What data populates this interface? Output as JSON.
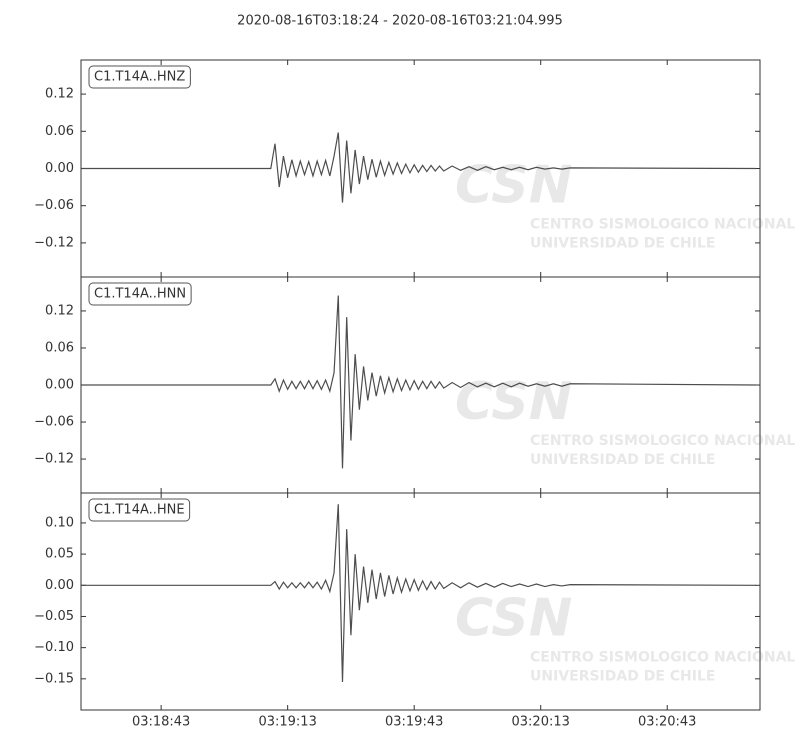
{
  "title": "2020-08-16T03:18:24  -  2020-08-16T03:21:04.995",
  "watermark": {
    "logo": "CSN",
    "line1": "CENTRO SISMOLOGICO NACIONAL",
    "line2": "UNIVERSIDAD DE CHILE"
  },
  "chart_data": [
    {
      "type": "line",
      "label": "C1.T14A..HNZ",
      "xlim": [
        "03:18:24",
        "03:21:04.995"
      ],
      "ylim": [
        -0.175,
        0.175
      ],
      "yticks": [
        {
          "value": -0.12,
          "label": "−0.12"
        },
        {
          "value": -0.06,
          "label": "−0.06"
        },
        {
          "value": 0,
          "label": "0.00"
        },
        {
          "value": 0.06,
          "label": "0.06"
        },
        {
          "value": 0.12,
          "label": "0.12"
        }
      ],
      "series": [
        {
          "name": "C1.T14A..HNZ",
          "color": "#4d4d4d",
          "x": [
            "03:18:24",
            "03:19:09",
            "03:19:10",
            "03:19:11",
            "03:19:12",
            "03:19:13",
            "03:19:14",
            "03:19:15",
            "03:19:16",
            "03:19:17",
            "03:19:18",
            "03:19:19",
            "03:19:20",
            "03:19:21",
            "03:19:22",
            "03:19:23",
            "03:19:24",
            "03:19:25",
            "03:19:26",
            "03:19:27",
            "03:19:28",
            "03:19:29",
            "03:19:30",
            "03:19:31",
            "03:19:32",
            "03:19:33",
            "03:19:34",
            "03:19:35",
            "03:19:36",
            "03:19:37",
            "03:19:38",
            "03:19:39",
            "03:19:40",
            "03:19:41",
            "03:19:42",
            "03:19:43",
            "03:19:44",
            "03:19:45",
            "03:19:46",
            "03:19:47",
            "03:19:48",
            "03:19:49",
            "03:19:50",
            "03:19:52",
            "03:19:54",
            "03:19:56",
            "03:19:58",
            "03:20:00",
            "03:20:02",
            "03:20:04",
            "03:20:06",
            "03:20:08",
            "03:20:10",
            "03:20:12",
            "03:20:14",
            "03:20:16",
            "03:20:18",
            "03:20:20",
            "03:21:04"
          ],
          "values": [
            0,
            0,
            0.04,
            -0.03,
            0.02,
            -0.015,
            0.014,
            -0.012,
            0.012,
            -0.01,
            0.011,
            -0.012,
            0.012,
            -0.01,
            0.013,
            -0.012,
            0.02,
            0.058,
            -0.055,
            0.045,
            -0.04,
            0.03,
            -0.025,
            0.02,
            -0.018,
            0.015,
            -0.014,
            0.012,
            -0.011,
            0.01,
            -0.009,
            0.009,
            -0.008,
            0.007,
            -0.007,
            0.006,
            -0.006,
            0.005,
            -0.005,
            0.005,
            -0.004,
            0.004,
            -0.004,
            0.004,
            -0.003,
            0.003,
            -0.003,
            0.003,
            -0.002,
            0.002,
            -0.002,
            0.002,
            -0.002,
            0.002,
            -0.001,
            0.001,
            -0.001,
            0.001,
            0
          ]
        }
      ]
    },
    {
      "type": "line",
      "label": "C1.T14A..HNN",
      "xlim": [
        "03:18:24",
        "03:21:04.995"
      ],
      "ylim": [
        -0.175,
        0.175
      ],
      "yticks": [
        {
          "value": -0.12,
          "label": "−0.12"
        },
        {
          "value": -0.06,
          "label": "−0.06"
        },
        {
          "value": 0,
          "label": "0.00"
        },
        {
          "value": 0.06,
          "label": "0.06"
        },
        {
          "value": 0.12,
          "label": "0.12"
        }
      ],
      "series": [
        {
          "name": "C1.T14A..HNN",
          "color": "#4d4d4d",
          "x": [
            "03:18:24",
            "03:19:09",
            "03:19:10",
            "03:19:11",
            "03:19:12",
            "03:19:13",
            "03:19:14",
            "03:19:15",
            "03:19:16",
            "03:19:17",
            "03:19:18",
            "03:19:19",
            "03:19:20",
            "03:19:21",
            "03:19:22",
            "03:19:23",
            "03:19:24",
            "03:19:25",
            "03:19:26",
            "03:19:27",
            "03:19:28",
            "03:19:29",
            "03:19:30",
            "03:19:31",
            "03:19:32",
            "03:19:33",
            "03:19:34",
            "03:19:35",
            "03:19:36",
            "03:19:37",
            "03:19:38",
            "03:19:39",
            "03:19:40",
            "03:19:41",
            "03:19:42",
            "03:19:43",
            "03:19:44",
            "03:19:45",
            "03:19:46",
            "03:19:47",
            "03:19:48",
            "03:19:49",
            "03:19:50",
            "03:19:52",
            "03:19:54",
            "03:19:56",
            "03:19:58",
            "03:20:00",
            "03:20:02",
            "03:20:04",
            "03:20:06",
            "03:20:08",
            "03:20:10",
            "03:20:12",
            "03:20:14",
            "03:20:16",
            "03:20:18",
            "03:20:20",
            "03:21:04"
          ],
          "values": [
            0,
            0,
            0.01,
            -0.01,
            0.008,
            -0.007,
            0.006,
            -0.006,
            0.006,
            -0.006,
            0.007,
            -0.006,
            0.007,
            -0.007,
            0.008,
            -0.01,
            0.02,
            0.145,
            -0.135,
            0.11,
            -0.09,
            0.05,
            -0.04,
            0.03,
            -0.025,
            0.02,
            -0.018,
            0.015,
            -0.013,
            0.012,
            -0.011,
            0.01,
            -0.009,
            0.008,
            -0.008,
            0.007,
            -0.007,
            0.006,
            -0.006,
            0.006,
            -0.005,
            0.005,
            -0.005,
            0.004,
            -0.004,
            0.004,
            -0.003,
            0.003,
            -0.003,
            0.003,
            -0.003,
            0.003,
            -0.002,
            0.002,
            -0.002,
            0.002,
            -0.002,
            0.002,
            0
          ]
        }
      ]
    },
    {
      "type": "line",
      "label": "C1.T14A..HNE",
      "xlim": [
        "03:18:24",
        "03:21:04.995"
      ],
      "ylim": [
        -0.2,
        0.148
      ],
      "yticks": [
        {
          "value": -0.15,
          "label": "−0.15"
        },
        {
          "value": -0.1,
          "label": "−0.10"
        },
        {
          "value": -0.05,
          "label": "−0.05"
        },
        {
          "value": 0,
          "label": "0.00"
        },
        {
          "value": 0.05,
          "label": "0.05"
        },
        {
          "value": 0.1,
          "label": "0.10"
        }
      ],
      "xticks": [
        "03:18:43",
        "03:19:13",
        "03:19:43",
        "03:20:13",
        "03:20:43"
      ],
      "series": [
        {
          "name": "C1.T14A..HNE",
          "color": "#4d4d4d",
          "x": [
            "03:18:24",
            "03:19:09",
            "03:19:10",
            "03:19:11",
            "03:19:12",
            "03:19:13",
            "03:19:14",
            "03:19:15",
            "03:19:16",
            "03:19:17",
            "03:19:18",
            "03:19:19",
            "03:19:20",
            "03:19:21",
            "03:19:22",
            "03:19:23",
            "03:19:24",
            "03:19:25",
            "03:19:26",
            "03:19:27",
            "03:19:28",
            "03:19:29",
            "03:19:30",
            "03:19:31",
            "03:19:32",
            "03:19:33",
            "03:19:34",
            "03:19:35",
            "03:19:36",
            "03:19:37",
            "03:19:38",
            "03:19:39",
            "03:19:40",
            "03:19:41",
            "03:19:42",
            "03:19:43",
            "03:19:44",
            "03:19:45",
            "03:19:46",
            "03:19:47",
            "03:19:48",
            "03:19:49",
            "03:19:50",
            "03:19:52",
            "03:19:54",
            "03:19:56",
            "03:19:58",
            "03:20:00",
            "03:20:02",
            "03:20:04",
            "03:20:06",
            "03:20:08",
            "03:20:10",
            "03:20:12",
            "03:20:14",
            "03:20:16",
            "03:20:18",
            "03:20:20",
            "03:21:04"
          ],
          "values": [
            0,
            0,
            0.006,
            -0.006,
            0.005,
            -0.004,
            0.004,
            -0.004,
            0.004,
            -0.004,
            0.005,
            -0.004,
            0.005,
            -0.006,
            0.008,
            -0.01,
            0.02,
            0.13,
            -0.155,
            0.09,
            -0.08,
            0.05,
            -0.04,
            0.03,
            -0.028,
            0.025,
            -0.022,
            0.02,
            -0.018,
            0.016,
            -0.014,
            0.012,
            -0.011,
            0.01,
            -0.009,
            0.009,
            -0.008,
            0.007,
            -0.007,
            0.006,
            -0.006,
            0.005,
            -0.005,
            0.004,
            -0.004,
            0.004,
            -0.003,
            0.003,
            -0.003,
            0.003,
            -0.002,
            0.002,
            -0.002,
            0.002,
            -0.002,
            0.001,
            -0.001,
            0.001,
            0
          ]
        }
      ]
    }
  ]
}
